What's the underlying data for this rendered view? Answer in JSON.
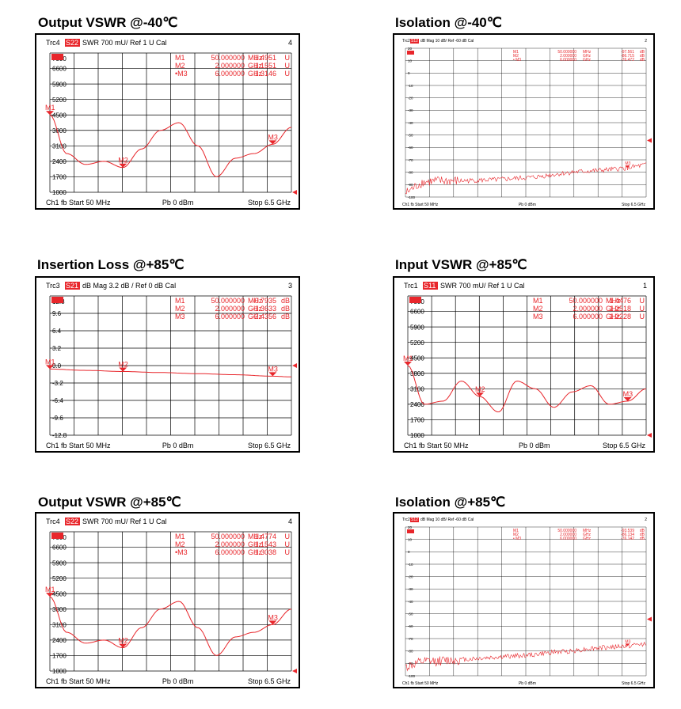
{
  "colors": {
    "trace": "#e8262b",
    "grid": "#000000",
    "badge": "#e8262b",
    "badge_text": "#ffffff"
  },
  "panels": [
    {
      "title": "Output VSWR @-40℃",
      "chart_data": {
        "type": "line",
        "header": {
          "trc": "Trc4",
          "param": "S22",
          "fmt": "SWR",
          "scale": "700 mU/",
          "ref": "Ref 1 U",
          "cal": "Cal",
          "chnum": "4"
        },
        "marker_table": [
          {
            "m": "M1",
            "freq": "50.000000",
            "funit": "MHz",
            "val": "1.4951",
            "vunit": "U"
          },
          {
            "m": "M2",
            "freq": "2.000000",
            "funit": "GHz",
            "val": "1.1551",
            "vunit": "U"
          },
          {
            "m": "•M3",
            "freq": "6.000000",
            "funit": "GHz",
            "val": "1.3146",
            "vunit": "U"
          }
        ],
        "yticks": [
          "7300",
          "6600",
          "5900",
          "5200",
          "4500",
          "3800",
          "3100",
          "2400",
          "1700",
          "1000"
        ],
        "yrange": [
          1000,
          7300
        ],
        "xrange": [
          0.05,
          6.5
        ],
        "footer": {
          "left": "Ch1  fb  Start  50 MHz",
          "mid": "Pb   0 dBm",
          "right": "Stop  6.5 GHz"
        },
        "x": [
          0.05,
          0.5,
          1.0,
          1.5,
          2.0,
          2.5,
          3.0,
          3.5,
          4.0,
          4.5,
          5.0,
          5.5,
          6.0,
          6.5
        ],
        "y": [
          1.5,
          1.25,
          1.18,
          1.2,
          1.16,
          1.28,
          1.4,
          1.45,
          1.3,
          1.1,
          1.22,
          1.25,
          1.31,
          1.42
        ],
        "markers": [
          {
            "label": "M1",
            "x": 0.05
          },
          {
            "label": "M2",
            "x": 2.0
          },
          {
            "label": "M3",
            "x": 6.0
          }
        ]
      }
    },
    {
      "title": "Isolation @-40℃",
      "chart_data": {
        "type": "line",
        "header": {
          "trc": "Trc2",
          "param": "S12",
          "fmt": "dB Mag",
          "scale": "10 dB/",
          "ref": "Ref -60 dB",
          "cal": "Cal",
          "chnum": "2"
        },
        "marker_table": [
          {
            "m": "M1",
            "freq": "50.000000",
            "funit": "MHz",
            "val": "-97.561",
            "vunit": "dB"
          },
          {
            "m": "M2",
            "freq": "2.000000",
            "funit": "GHz",
            "val": "-86.715",
            "vunit": "dB"
          },
          {
            "m": "• M3",
            "freq": "6.000000",
            "funit": "GHz",
            "val": "-76.472",
            "vunit": "dB"
          }
        ],
        "yticks": [
          "20",
          "10",
          "0",
          "-10",
          "-20",
          "-30",
          "-40",
          "-50",
          "-60",
          "-70",
          "-80",
          "-90",
          "-100"
        ],
        "yrange": [
          -100,
          20
        ],
        "xrange": [
          0.05,
          6.5
        ],
        "footer": {
          "left": "Ch1  fb  Start  50 MHz",
          "mid": "Pb   0 dBm",
          "right": "Stop  6.5 GHz"
        },
        "x": [
          0.05,
          0.5,
          1.0,
          1.5,
          2.0,
          2.5,
          3.0,
          3.5,
          4.0,
          4.5,
          5.0,
          5.5,
          6.0,
          6.5
        ],
        "y": [
          -97,
          -88,
          -87,
          -87,
          -86.5,
          -86,
          -85,
          -84,
          -82,
          -80,
          -79,
          -78,
          -76.5,
          -74
        ],
        "markers": [
          {
            "label": "M3",
            "x": 6.0
          }
        ]
      }
    },
    {
      "title": "Insertion Loss @+85℃",
      "chart_data": {
        "type": "line",
        "header": {
          "trc": "Trc3",
          "param": "S21",
          "fmt": "dB Mag",
          "scale": "3.2 dB /",
          "ref": "Ref 0 dB",
          "cal": "Cal",
          "chnum": "3"
        },
        "marker_table": [
          {
            "m": "M1",
            "freq": "50.000000",
            "funit": "MHz",
            "val": "-0.7935",
            "vunit": "dB"
          },
          {
            "m": "M2",
            "freq": "2.000000",
            "funit": "GHz",
            "val": "-1.3633",
            "vunit": "dB"
          },
          {
            "m": "M3",
            "freq": "6.000000",
            "funit": "GHz",
            "val": "-2.4356",
            "vunit": "dB"
          }
        ],
        "yticks": [
          "12.8",
          "9.6",
          "6.4",
          "3.2",
          "0.0",
          "-3.2",
          "-6.4",
          "-9.6",
          "-12.8"
        ],
        "yrange": [
          -16,
          16
        ],
        "xrange": [
          0.05,
          6.5
        ],
        "footer": {
          "left": "Ch1  fb  Start  50 MHz",
          "mid": "Pb   0 dBm",
          "right": "Stop  6.5 GHz"
        },
        "x": [
          0.05,
          1.0,
          2.0,
          3.0,
          4.0,
          5.0,
          6.0,
          6.5
        ],
        "y": [
          -0.79,
          -1.1,
          -1.36,
          -1.6,
          -1.85,
          -2.1,
          -2.44,
          -2.6
        ],
        "markers": [
          {
            "label": "M1",
            "x": 0.05
          },
          {
            "label": "M2",
            "x": 2.0
          },
          {
            "label": "M3",
            "x": 6.0
          }
        ]
      }
    },
    {
      "title": "Input VSWR @+85℃",
      "chart_data": {
        "type": "line",
        "header": {
          "trc": "Trc1",
          "param": "S11",
          "fmt": "SWR",
          "scale": "700 mU/",
          "ref": "Ref 1 U",
          "cal": "Cal",
          "chnum": "1"
        },
        "marker_table": [
          {
            "m": "M1",
            "freq": "50.000000",
            "funit": "MHz",
            "val": "1.4476",
            "vunit": "U"
          },
          {
            "m": "M2",
            "freq": "2.000000",
            "funit": "GHz",
            "val": "1.2518",
            "vunit": "U"
          },
          {
            "m": "M3",
            "freq": "6.000000",
            "funit": "GHz",
            "val": "1.2228",
            "vunit": "U"
          }
        ],
        "yticks": [
          "7300",
          "6600",
          "5900",
          "5200",
          "4500",
          "3800",
          "3100",
          "2400",
          "1700",
          "1000"
        ],
        "yrange": [
          1000,
          7300
        ],
        "xrange": [
          0.05,
          6.5
        ],
        "footer": {
          "left": "Ch1  fb  Start  50 MHz",
          "mid": "Pb   0 dBm",
          "right": "Stop  6.5 GHz"
        },
        "x": [
          0.05,
          0.5,
          1.0,
          1.5,
          2.0,
          2.5,
          3.0,
          3.5,
          4.0,
          4.5,
          5.0,
          5.5,
          6.0,
          6.5
        ],
        "y": [
          1.45,
          1.2,
          1.22,
          1.35,
          1.25,
          1.15,
          1.35,
          1.3,
          1.18,
          1.28,
          1.32,
          1.2,
          1.22,
          1.3
        ],
        "markers": [
          {
            "label": "M1",
            "x": 0.05
          },
          {
            "label": "M2",
            "x": 2.0
          },
          {
            "label": "M3",
            "x": 6.0
          }
        ]
      }
    },
    {
      "title": "Output VSWR @+85℃",
      "chart_data": {
        "type": "line",
        "header": {
          "trc": "Trc4",
          "param": "S22",
          "fmt": "SWR",
          "scale": "700 mU/",
          "ref": "Ref 1 U",
          "cal": "Cal",
          "chnum": "4"
        },
        "marker_table": [
          {
            "m": "M1",
            "freq": "50.000000",
            "funit": "MHz",
            "val": "1.4774",
            "vunit": "U"
          },
          {
            "m": "M2",
            "freq": "2.000000",
            "funit": "GHz",
            "val": "1.1543",
            "vunit": "U"
          },
          {
            "m": "•M3",
            "freq": "6.000000",
            "funit": "GHz",
            "val": "1.3038",
            "vunit": "U"
          }
        ],
        "yticks": [
          "7300",
          "6600",
          "5900",
          "5200",
          "4500",
          "3800",
          "3100",
          "2400",
          "1700",
          "1000"
        ],
        "yrange": [
          1000,
          7300
        ],
        "xrange": [
          0.05,
          6.5
        ],
        "footer": {
          "left": "Ch1  fb  Start  50 MHz",
          "mid": "Pb   0 dBm",
          "right": "Stop  6.5 GHz"
        },
        "x": [
          0.05,
          0.5,
          1.0,
          1.5,
          2.0,
          2.5,
          3.0,
          3.5,
          4.0,
          4.5,
          5.0,
          5.5,
          6.0,
          6.5
        ],
        "y": [
          1.48,
          1.25,
          1.18,
          1.2,
          1.15,
          1.28,
          1.4,
          1.45,
          1.28,
          1.1,
          1.22,
          1.25,
          1.3,
          1.4
        ],
        "markers": [
          {
            "label": "M1",
            "x": 0.05
          },
          {
            "label": "M2",
            "x": 2.0
          },
          {
            "label": "M3",
            "x": 6.0
          }
        ]
      }
    },
    {
      "title": "Isolation @+85℃",
      "chart_data": {
        "type": "line",
        "header": {
          "trc": "Trc2",
          "param": "S12",
          "fmt": "dB Mag",
          "scale": "10 dB/",
          "ref": "Ref -60 dB",
          "cal": "Cal",
          "chnum": "2"
        },
        "marker_table": [
          {
            "m": "M1",
            "freq": "50.000000",
            "funit": "MHz",
            "val": "-93.539",
            "vunit": "dB"
          },
          {
            "m": "M2",
            "freq": "2.000000",
            "funit": "GHz",
            "val": "-86.134",
            "vunit": "dB"
          },
          {
            "m": "• M3",
            "freq": "6.000000",
            "funit": "GHz",
            "val": "-76.142",
            "vunit": "dB"
          }
        ],
        "yticks": [
          "20",
          "10",
          "0",
          "-10",
          "-20",
          "-30",
          "-40",
          "-50",
          "-60",
          "-70",
          "-80",
          "-90",
          "-100"
        ],
        "yrange": [
          -100,
          20
        ],
        "xrange": [
          0.05,
          6.5
        ],
        "footer": {
          "left": "Ch1  fb  Start  50 MHz",
          "mid": "Pb   0 dBm",
          "right": "Stop  6.5 GHz"
        },
        "x": [
          0.05,
          0.5,
          1.0,
          1.5,
          2.0,
          2.5,
          3.0,
          3.5,
          4.0,
          4.5,
          5.0,
          5.5,
          6.0,
          6.5
        ],
        "y": [
          -93,
          -89,
          -88,
          -87,
          -86,
          -85,
          -84,
          -83,
          -81,
          -80,
          -78,
          -77,
          -76,
          -74
        ],
        "markers": [
          {
            "label": "M3",
            "x": 6.0
          }
        ]
      }
    }
  ]
}
